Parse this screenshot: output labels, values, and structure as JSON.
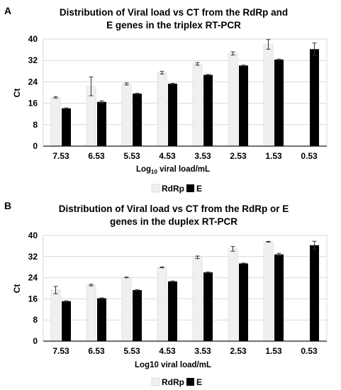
{
  "chart_data": [
    {
      "panel_label": "A",
      "type": "bar",
      "title_lines": [
        "Distribution of Viral load vs CT from the RdRp and",
        "E genes in the triplex RT-PCR"
      ],
      "xlabel_main": "Log",
      "xlabel_sub": "10",
      "xlabel_rest": " viral load/mL",
      "ylabel": "Ct",
      "ylim": [
        0,
        40
      ],
      "yticks": [
        "0",
        "8",
        "16",
        "24",
        "32",
        "40"
      ],
      "grid": true,
      "legend_position": "bottom-center",
      "categories": [
        "7.53",
        "6.53",
        "5.53",
        "4.53",
        "3.53",
        "2.53",
        "1.53",
        "0.53"
      ],
      "series": [
        {
          "name": "RdRp",
          "color": "#f0f0f0",
          "values": [
            18.2,
            22.3,
            23.2,
            27.4,
            30.7,
            34.6,
            38.0,
            null
          ],
          "errors": [
            0.3,
            3.5,
            0.4,
            0.5,
            0.5,
            0.6,
            1.8,
            null
          ]
        },
        {
          "name": "E",
          "color": "#000000",
          "values": [
            14.1,
            16.5,
            19.6,
            23.3,
            26.6,
            30.1,
            32.3,
            36.2
          ],
          "errors": [
            0.15,
            0.4,
            0.15,
            0.15,
            0.15,
            0.15,
            0.2,
            2.3
          ]
        }
      ]
    },
    {
      "panel_label": "B",
      "type": "bar",
      "title_lines": [
        "Distribution of Viral load vs CT from the RdRp or E",
        "genes in the duplex RT-PCR"
      ],
      "xlabel_main": "Log10 viral load/mL",
      "xlabel_sub": "",
      "xlabel_rest": "",
      "ylabel": "Ct",
      "ylim": [
        0,
        40
      ],
      "yticks": [
        "0",
        "8",
        "16",
        "24",
        "32",
        "40"
      ],
      "grid": true,
      "legend_position": "bottom-center",
      "categories": [
        "7.53",
        "6.53",
        "5.53",
        "4.53",
        "3.53",
        "2.53",
        "1.53",
        "0.53"
      ],
      "series": [
        {
          "name": "RdRp",
          "color": "#f0f0f0",
          "values": [
            19.3,
            21.2,
            24.1,
            27.9,
            31.7,
            34.9,
            37.6,
            null
          ],
          "errors": [
            1.4,
            0.3,
            0.15,
            0.15,
            0.5,
            0.9,
            0.15,
            null
          ]
        },
        {
          "name": "E",
          "color": "#000000",
          "values": [
            15.1,
            16.2,
            19.3,
            22.6,
            26.0,
            29.4,
            32.8,
            36.3
          ],
          "errors": [
            0.15,
            0.15,
            0.15,
            0.15,
            0.15,
            0.15,
            0.4,
            1.5
          ]
        }
      ]
    }
  ]
}
